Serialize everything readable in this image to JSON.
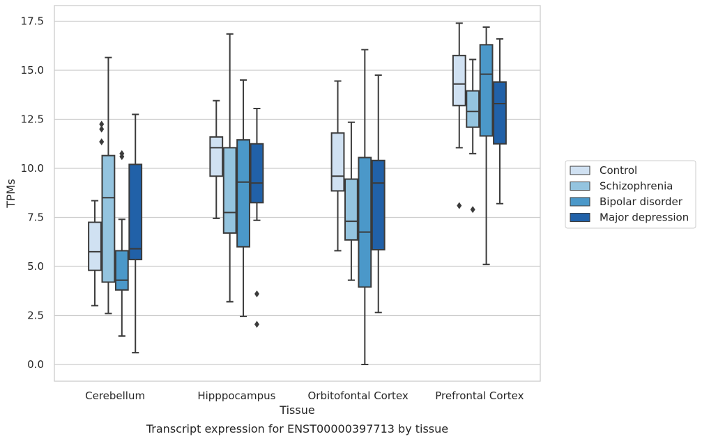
{
  "chart_data": {
    "type": "box",
    "caption": "Transcript expression for ENST00000397713 by tissue",
    "xlabel": "Tissue",
    "ylabel": "TPMs",
    "ylim": [
      -0.8,
      18.3
    ],
    "yticks": [
      "0.0",
      "2.5",
      "5.0",
      "7.5",
      "10.0",
      "12.5",
      "15.0",
      "17.5"
    ],
    "ytick_values": [
      0,
      2.5,
      5,
      7.5,
      10,
      12.5,
      15,
      17.5
    ],
    "grid": true,
    "legend_position": "right",
    "categories": [
      "Cerebellum",
      "Hipppocampus",
      "Orbitofontal Cortex",
      "Prefrontal Cortex"
    ],
    "series": [
      {
        "name": "Control",
        "color": "#d0e1f2",
        "boxes": [
          {
            "whislo": 3.0,
            "q1": 4.8,
            "med": 5.75,
            "q3": 7.25,
            "whishi": 8.35,
            "fliers": []
          },
          {
            "whislo": 7.45,
            "q1": 9.6,
            "med": 11.05,
            "q3": 11.6,
            "whishi": 13.45,
            "fliers": []
          },
          {
            "whislo": 5.8,
            "q1": 8.85,
            "med": 9.6,
            "q3": 11.8,
            "whishi": 14.45,
            "fliers": []
          },
          {
            "whislo": 11.05,
            "q1": 13.2,
            "med": 14.3,
            "q3": 15.75,
            "whishi": 17.4,
            "fliers": [
              8.1
            ]
          }
        ]
      },
      {
        "name": "Schizophrenia",
        "color": "#94c4df",
        "boxes": [
          {
            "whislo": 2.6,
            "q1": 4.2,
            "med": 8.5,
            "q3": 10.65,
            "whishi": 15.65,
            "fliers": []
          },
          {
            "whislo": 3.2,
            "q1": 6.7,
            "med": 7.75,
            "q3": 11.05,
            "whishi": 16.85,
            "fliers": []
          },
          {
            "whislo": 4.3,
            "q1": 6.35,
            "med": 7.3,
            "q3": 9.45,
            "whishi": 12.35,
            "fliers": []
          },
          {
            "whislo": 10.75,
            "q1": 12.1,
            "med": 12.9,
            "q3": 13.95,
            "whishi": 15.55,
            "fliers": [
              7.9
            ]
          }
        ]
      },
      {
        "name": "Bipolar disorder",
        "color": "#4b98c9",
        "boxes": [
          {
            "whislo": 1.45,
            "q1": 3.8,
            "med": 4.3,
            "q3": 5.8,
            "whishi": 7.4,
            "fliers": [
              10.6,
              10.75
            ]
          },
          {
            "whislo": 2.45,
            "q1": 6.0,
            "med": 9.3,
            "q3": 11.45,
            "whishi": 14.5,
            "fliers": []
          },
          {
            "whislo": 0.0,
            "q1": 3.95,
            "med": 6.75,
            "q3": 10.55,
            "whishi": 16.05,
            "fliers": []
          },
          {
            "whislo": 5.1,
            "q1": 11.65,
            "med": 14.8,
            "q3": 16.3,
            "whishi": 17.2,
            "fliers": []
          }
        ]
      },
      {
        "name": "Major depression",
        "color": "#2161a8",
        "boxes": [
          {
            "whislo": 0.6,
            "q1": 5.35,
            "med": 5.9,
            "q3": 10.2,
            "whishi": 12.75,
            "fliers": []
          },
          {
            "whislo": 7.35,
            "q1": 8.25,
            "med": 9.25,
            "q3": 11.25,
            "whishi": 13.05,
            "fliers": [
              2.05,
              3.6
            ]
          },
          {
            "whislo": 2.65,
            "q1": 5.85,
            "med": 9.25,
            "q3": 10.4,
            "whishi": 14.75,
            "fliers": []
          },
          {
            "whislo": 8.2,
            "q1": 11.25,
            "med": 13.3,
            "q3": 14.4,
            "whishi": 16.6,
            "fliers": []
          }
        ]
      }
    ]
  },
  "extra_fliers": [
    {
      "category": 0,
      "series": 0,
      "values": [
        11.35,
        12.0,
        12.25
      ]
    }
  ]
}
